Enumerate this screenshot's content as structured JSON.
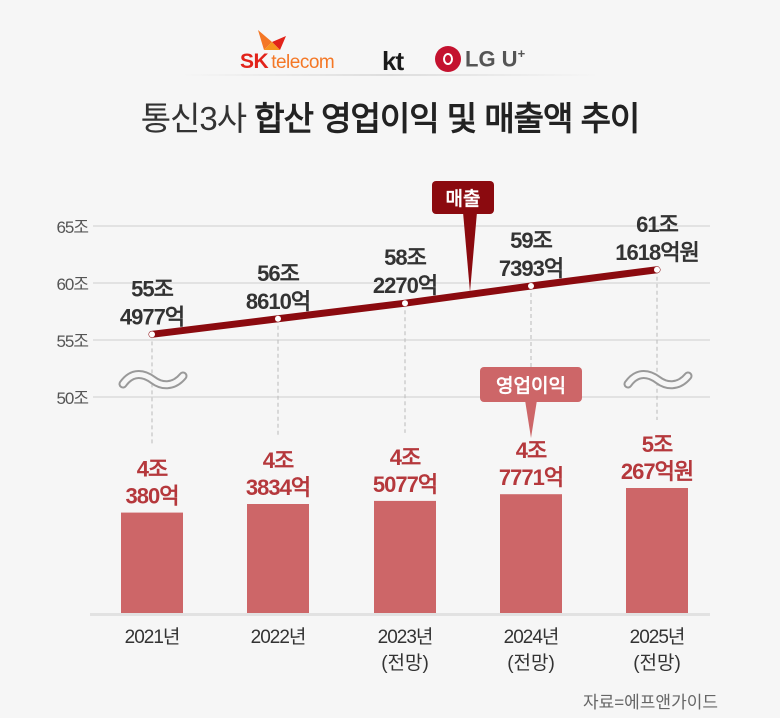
{
  "logos": {
    "sk_main": "SK",
    "sk_sub": "telecom",
    "kt": "kt",
    "lg_main": "LG U",
    "lg_plus": "+"
  },
  "title": {
    "light": "통신3사",
    "bold": "합산 영업이익 및 매출액 추이"
  },
  "source": "자료=에프앤가이드",
  "colors": {
    "revenue_line": "#8b0a0f",
    "revenue_callout": "#8b0a0f",
    "profit_bar": "#cd6668",
    "profit_label": "#b5383c",
    "grid": "#dcdcdc",
    "text_dark": "#333333"
  },
  "chart_data": [
    {
      "type": "line",
      "name": "revenue",
      "callout": "매출",
      "unit": "조",
      "yaxis_ticks": [
        "50조",
        "55조",
        "60조",
        "65조"
      ],
      "ylim": [
        50,
        65
      ],
      "axis_break": true,
      "categories": [
        "2021년",
        "2022년",
        "2023년",
        "2024년",
        "2025년"
      ],
      "values": [
        55.4977,
        56.861,
        58.227,
        59.7393,
        61.1618
      ],
      "labels": [
        [
          "55조",
          "4977억"
        ],
        [
          "56조",
          "8610억"
        ],
        [
          "58조",
          "2270억"
        ],
        [
          "59조",
          "7393억"
        ],
        [
          "61조",
          "1618억원"
        ]
      ]
    },
    {
      "type": "bar",
      "name": "operating_profit",
      "callout": "영업이익",
      "unit": "조",
      "categories": [
        "2021년",
        "2022년",
        "2023년",
        "2024년",
        "2025년"
      ],
      "category_notes": [
        "",
        "",
        "(전망)",
        "(전망)",
        "(전망)"
      ],
      "values": [
        4.038,
        4.3834,
        4.5077,
        4.7771,
        5.0267
      ],
      "labels": [
        [
          "4조",
          "380억"
        ],
        [
          "4조",
          "3834억"
        ],
        [
          "4조",
          "5077억"
        ],
        [
          "4조",
          "7771억"
        ],
        [
          "5조",
          "267억원"
        ]
      ]
    }
  ]
}
